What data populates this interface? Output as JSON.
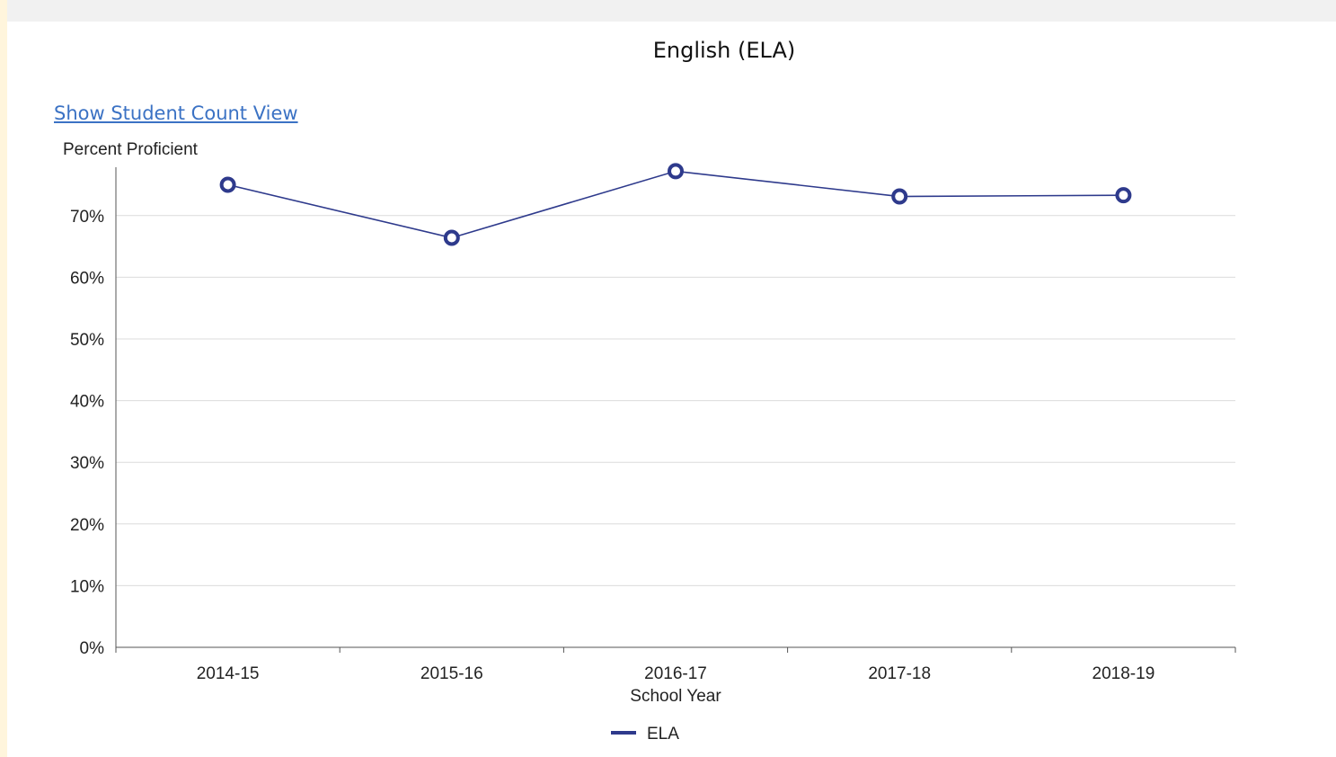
{
  "link": {
    "label": "Show Student Count View"
  },
  "chart_data": {
    "type": "line",
    "title": "English (ELA)",
    "ylabel": "Percent Proficient",
    "xlabel": "School Year",
    "categories": [
      "2014-15",
      "2015-16",
      "2016-17",
      "2017-18",
      "2018-19"
    ],
    "series": [
      {
        "name": "ELA",
        "values": [
          75.0,
          66.4,
          77.2,
          73.1,
          73.3
        ],
        "color": "#2e3a8c"
      }
    ],
    "ylim": [
      0,
      78
    ],
    "yticks": [
      0,
      10,
      20,
      30,
      40,
      50,
      60,
      70
    ],
    "ytick_labels": [
      "0%",
      "10%",
      "20%",
      "30%",
      "40%",
      "50%",
      "60%",
      "70%"
    ],
    "grid": true,
    "legend": "bottom-center"
  }
}
